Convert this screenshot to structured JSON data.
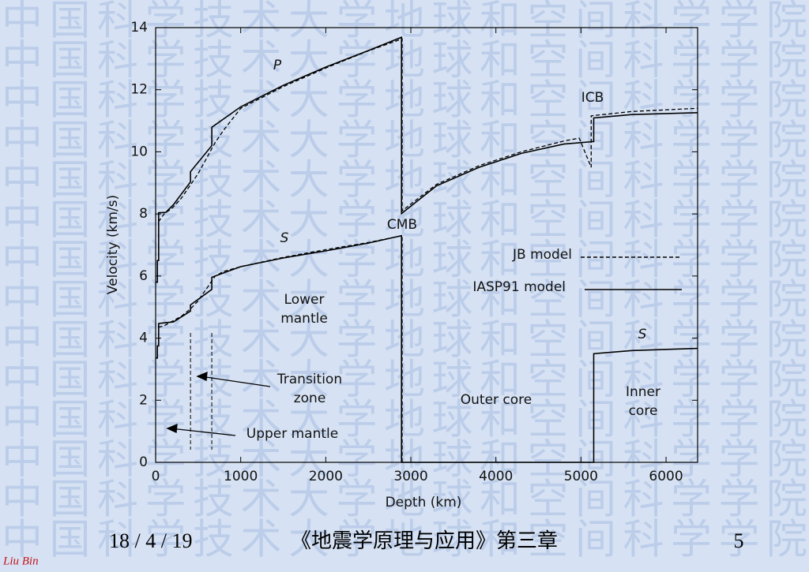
{
  "watermark": "中国科学技术大学地球和空间科学学院",
  "chart_data": {
    "type": "line",
    "xlabel": "Depth (km)",
    "ylabel": "Velocity (km/s)",
    "xlim": [
      0,
      6371
    ],
    "ylim": [
      0,
      14
    ],
    "xticks": [
      0,
      1000,
      2000,
      3000,
      4000,
      5000,
      6000
    ],
    "yticks": [
      0,
      2,
      4,
      6,
      8,
      10,
      12,
      14
    ],
    "zone_boundaries": [
      410,
      660
    ],
    "annotations": [
      "P",
      "S",
      "S",
      "CMB",
      "ICB",
      [
        "Lower",
        "mantle"
      ],
      [
        "Transition",
        "zone"
      ],
      "Upper mantle",
      "Outer core",
      [
        "Inner",
        "core"
      ]
    ],
    "series": [
      {
        "name": "JB model",
        "dashed": true,
        "color": "#000000",
        "curves": [
          {
            "x": [
              33,
              100,
              200,
              300,
              413,
              500,
              600,
              700,
              800,
              1000,
              1500,
              2000,
              2500,
              2898,
              2898,
              3300,
              3800,
              4300,
              4800,
              4980,
              5120,
              5120,
              5600,
              6371
            ],
            "values": [
              7.75,
              8.0,
              8.2,
              8.5,
              8.95,
              9.3,
              9.8,
              10.3,
              10.7,
              11.4,
              12.1,
              12.7,
              13.25,
              13.64,
              8.1,
              8.95,
              9.55,
              10.0,
              10.35,
              10.44,
              9.5,
              11.16,
              11.3,
              11.4
            ]
          },
          {
            "x": [
              33,
              100,
              200,
              300,
              413,
              500,
              600,
              700,
              800,
              1000,
              1500,
              2000,
              2500,
              2898,
              2898
            ],
            "values": [
              4.35,
              4.4,
              4.55,
              4.7,
              4.95,
              5.2,
              5.6,
              6.0,
              6.15,
              6.3,
              6.6,
              6.85,
              7.08,
              7.3,
              0
            ]
          }
        ]
      },
      {
        "name": "IASP91 model",
        "dashed": false,
        "color": "#000000",
        "curves": [
          {
            "x": [
              0,
              20,
              20,
              35,
              35,
              120,
              210,
              410,
              410,
              660,
              660,
              1000,
              1500,
              2000,
              2500,
              2890,
              2890,
              3300,
              3800,
              4300,
              4800,
              5150,
              5150,
              5600,
              6371
            ],
            "values": [
              5.8,
              5.8,
              6.5,
              6.5,
              8.04,
              8.05,
              8.3,
              9.03,
              9.36,
              10.2,
              10.79,
              11.45,
              12.14,
              12.73,
              13.26,
              13.69,
              8.01,
              8.9,
              9.5,
              9.95,
              10.25,
              10.33,
              11.09,
              11.2,
              11.26
            ]
          },
          {
            "x": [
              0,
              20,
              20,
              35,
              35,
              120,
              210,
              410,
              410,
              660,
              660,
              1000,
              1500,
              2000,
              2500,
              2890,
              2890,
              5150,
              5150,
              5600,
              6371
            ],
            "values": [
              3.36,
              3.36,
              3.75,
              3.75,
              4.47,
              4.5,
              4.52,
              4.87,
              5.07,
              5.57,
              5.96,
              6.3,
              6.58,
              6.81,
              7.06,
              7.3,
              0,
              0,
              3.5,
              3.6,
              3.67
            ]
          }
        ]
      }
    ]
  },
  "footer": {
    "date": "18 / 4 / 19",
    "course": "《地震学原理与应用》第三章",
    "page": "5",
    "author": "Liu Bin"
  }
}
